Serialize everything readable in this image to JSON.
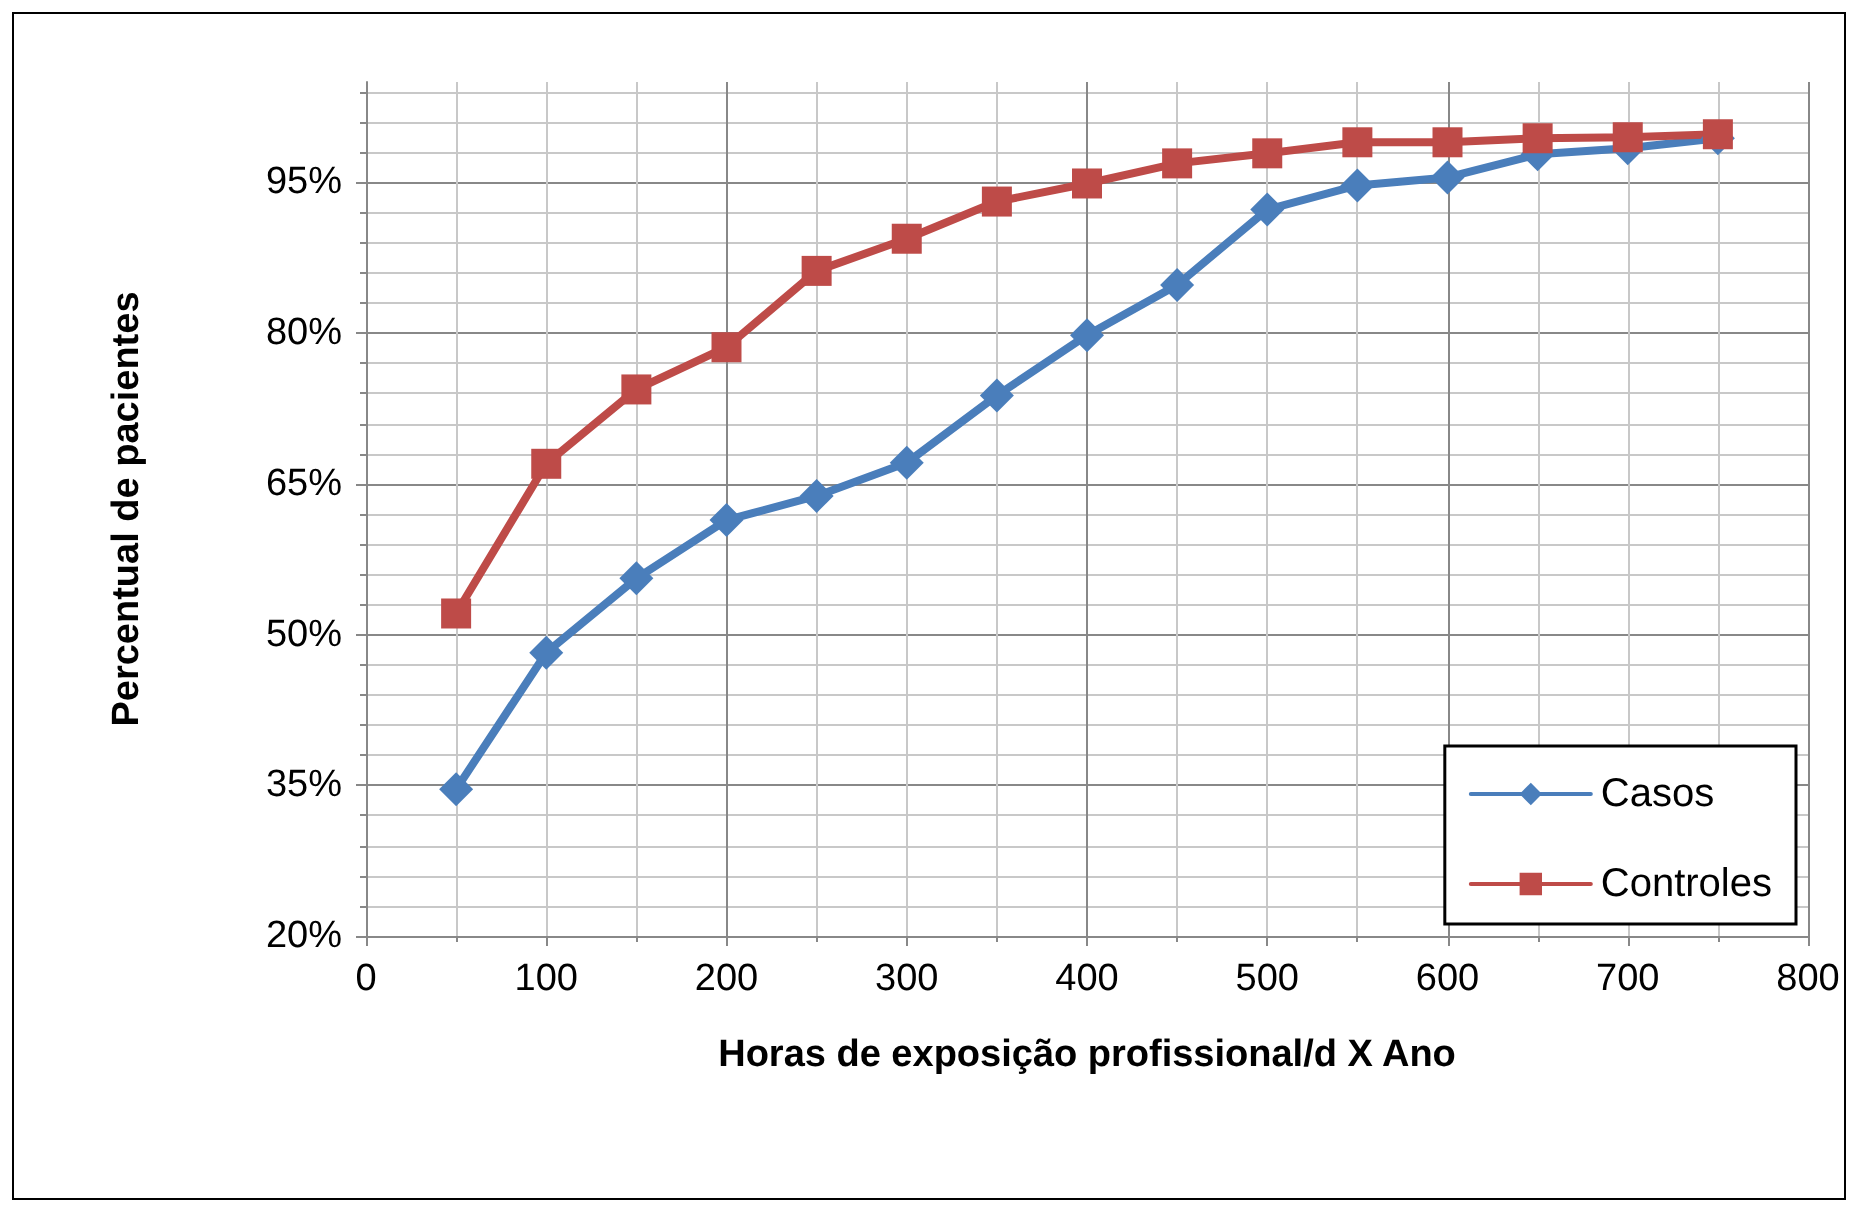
{
  "chart_data": {
    "type": "line",
    "xlabel": "Horas de exposição profissional/d X Ano",
    "ylabel": "Percentual de pacientes",
    "x": [
      50,
      100,
      150,
      200,
      250,
      300,
      350,
      400,
      450,
      500,
      550,
      600,
      650,
      700,
      750
    ],
    "series": [
      {
        "name": "Casos",
        "color": "#4a7ebb",
        "marker": "diamond",
        "values": [
          34.6,
          48.2,
          55.6,
          61.4,
          63.8,
          67.1,
          73.8,
          79.8,
          84.8,
          92.3,
          94.7,
          95.5,
          97.8,
          98.4,
          99.4
        ]
      },
      {
        "name": "Controles",
        "color": "#be4b48",
        "marker": "square",
        "values": [
          52.1,
          67.0,
          74.4,
          78.6,
          86.2,
          89.4,
          93.1,
          94.9,
          96.9,
          97.9,
          99.0,
          99.0,
          99.4,
          99.5,
          99.8
        ]
      }
    ],
    "xlim": [
      0,
      800
    ],
    "xticks": [
      0,
      100,
      200,
      300,
      400,
      500,
      600,
      700,
      800
    ],
    "ylim": [
      20,
      105
    ],
    "yticks": [
      {
        "value": 20,
        "label": "20%"
      },
      {
        "value": 35,
        "label": "35%"
      },
      {
        "value": 50,
        "label": "50%"
      },
      {
        "value": 65,
        "label": "65%"
      },
      {
        "value": 80,
        "label": "80%"
      },
      {
        "value": 95,
        "label": "95%"
      }
    ],
    "grid": true,
    "legend": "bottom right",
    "line_style": "solid"
  }
}
